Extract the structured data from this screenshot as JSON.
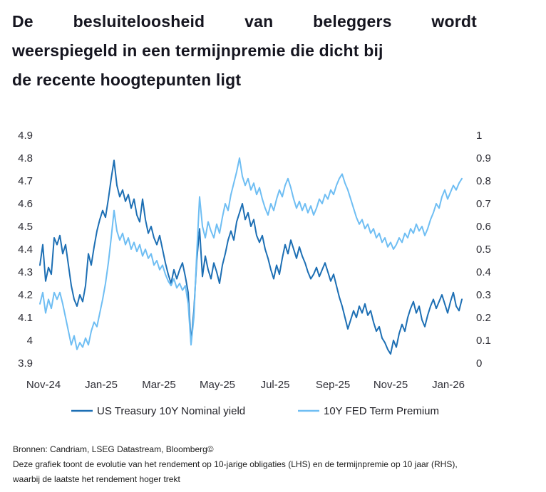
{
  "title": {
    "line1": "De besluiteloosheid van beleggers wordt",
    "line2": "weerspiegeld in een termijnpremie die dicht bij",
    "line3": "de recente hoogtepunten ligt"
  },
  "chart_data": {
    "type": "line",
    "title": "",
    "x_tick_labels": [
      "Nov-24",
      "Jan-25",
      "Mar-25",
      "May-25",
      "Jul-25",
      "Sep-25",
      "Nov-25",
      "Jan-26"
    ],
    "left_axis": {
      "side": "LHS",
      "min": 3.9,
      "max": 4.9,
      "tick_labels": [
        "4.9",
        "4.8",
        "4.7",
        "4.6",
        "4.5",
        "4.4",
        "4.3",
        "4.2",
        "4.1",
        "4",
        "3.9"
      ]
    },
    "right_axis": {
      "side": "RHS",
      "min": 0,
      "max": 1,
      "tick_labels": [
        "1",
        "0.9",
        "0.8",
        "0.7",
        "0.6",
        "0.5",
        "0.4",
        "0.3",
        "0.2",
        "0.1",
        "0"
      ]
    },
    "grid": "off",
    "legend_position": "bottom",
    "series": [
      {
        "name": "US Treasury 10Y Nominal yield",
        "axis": "left",
        "color": "#1D6FB4",
        "values": [
          4.33,
          4.42,
          4.26,
          4.32,
          4.29,
          4.45,
          4.42,
          4.46,
          4.38,
          4.42,
          4.33,
          4.24,
          4.18,
          4.15,
          4.2,
          4.17,
          4.24,
          4.38,
          4.33,
          4.41,
          4.48,
          4.53,
          4.57,
          4.54,
          4.62,
          4.71,
          4.79,
          4.68,
          4.63,
          4.66,
          4.61,
          4.64,
          4.58,
          4.62,
          4.55,
          4.52,
          4.62,
          4.53,
          4.47,
          4.5,
          4.45,
          4.42,
          4.46,
          4.4,
          4.34,
          4.29,
          4.25,
          4.31,
          4.27,
          4.31,
          4.34,
          4.28,
          4.21,
          3.99,
          4.13,
          4.35,
          4.49,
          4.28,
          4.37,
          4.31,
          4.27,
          4.34,
          4.3,
          4.25,
          4.33,
          4.38,
          4.44,
          4.48,
          4.44,
          4.52,
          4.56,
          4.6,
          4.53,
          4.56,
          4.5,
          4.53,
          4.46,
          4.43,
          4.46,
          4.4,
          4.36,
          4.31,
          4.27,
          4.33,
          4.29,
          4.36,
          4.42,
          4.38,
          4.44,
          4.4,
          4.36,
          4.41,
          4.37,
          4.34,
          4.3,
          4.27,
          4.29,
          4.32,
          4.28,
          4.31,
          4.34,
          4.3,
          4.26,
          4.29,
          4.24,
          4.19,
          4.15,
          4.1,
          4.05,
          4.09,
          4.13,
          4.1,
          4.15,
          4.12,
          4.16,
          4.11,
          4.13,
          4.08,
          4.04,
          4.06,
          4.01,
          3.99,
          3.96,
          3.94,
          4.0,
          3.97,
          4.03,
          4.07,
          4.04,
          4.1,
          4.14,
          4.17,
          4.12,
          4.15,
          4.09,
          4.06,
          4.11,
          4.15,
          4.18,
          4.14,
          4.17,
          4.2,
          4.16,
          4.12,
          4.17,
          4.21,
          4.15,
          4.13,
          4.18
        ]
      },
      {
        "name": "10Y FED Term Premium",
        "axis": "right",
        "color": "#6FBEF3",
        "values": [
          0.26,
          0.31,
          0.22,
          0.28,
          0.24,
          0.31,
          0.28,
          0.31,
          0.26,
          0.2,
          0.14,
          0.08,
          0.12,
          0.06,
          0.09,
          0.07,
          0.11,
          0.08,
          0.14,
          0.18,
          0.16,
          0.22,
          0.28,
          0.35,
          0.44,
          0.55,
          0.67,
          0.58,
          0.54,
          0.57,
          0.52,
          0.55,
          0.5,
          0.53,
          0.49,
          0.52,
          0.47,
          0.5,
          0.46,
          0.48,
          0.43,
          0.45,
          0.41,
          0.43,
          0.39,
          0.36,
          0.34,
          0.37,
          0.33,
          0.35,
          0.32,
          0.34,
          0.26,
          0.08,
          0.2,
          0.48,
          0.73,
          0.6,
          0.55,
          0.62,
          0.58,
          0.55,
          0.61,
          0.57,
          0.64,
          0.7,
          0.67,
          0.74,
          0.79,
          0.84,
          0.9,
          0.82,
          0.78,
          0.81,
          0.76,
          0.79,
          0.74,
          0.77,
          0.72,
          0.68,
          0.65,
          0.7,
          0.67,
          0.72,
          0.76,
          0.73,
          0.78,
          0.81,
          0.77,
          0.72,
          0.68,
          0.71,
          0.67,
          0.7,
          0.66,
          0.69,
          0.65,
          0.68,
          0.72,
          0.7,
          0.74,
          0.72,
          0.76,
          0.74,
          0.78,
          0.81,
          0.83,
          0.79,
          0.76,
          0.72,
          0.68,
          0.64,
          0.61,
          0.63,
          0.59,
          0.61,
          0.57,
          0.59,
          0.55,
          0.57,
          0.53,
          0.55,
          0.51,
          0.53,
          0.5,
          0.52,
          0.55,
          0.53,
          0.57,
          0.55,
          0.59,
          0.57,
          0.61,
          0.58,
          0.6,
          0.56,
          0.59,
          0.63,
          0.66,
          0.7,
          0.68,
          0.73,
          0.76,
          0.72,
          0.75,
          0.78,
          0.76,
          0.79,
          0.81
        ]
      }
    ]
  },
  "footer": {
    "sources": "Bronnen: Candriam, LSEG Datastream, Bloomberg©",
    "caption_line1": "Deze grafiek toont de evolutie van het rendement op 10-jarige obligaties (LHS) en de termijnpremie op 10 jaar (RHS),",
    "caption_line2": "waarbij de laatste het rendement hoger trekt"
  }
}
